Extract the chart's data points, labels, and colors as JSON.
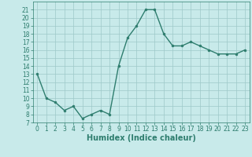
{
  "x": [
    0,
    1,
    2,
    3,
    4,
    5,
    6,
    7,
    8,
    9,
    10,
    11,
    12,
    13,
    14,
    15,
    16,
    17,
    18,
    19,
    20,
    21,
    22,
    23
  ],
  "y": [
    13,
    10,
    9.5,
    8.5,
    9,
    7.5,
    8,
    8.5,
    8,
    14,
    17.5,
    19,
    21,
    21,
    18,
    16.5,
    16.5,
    17,
    16.5,
    16,
    15.5,
    15.5,
    15.5,
    16
  ],
  "line_color": "#2e7d6e",
  "marker": "o",
  "marker_size": 2.0,
  "bg_color": "#c8eaea",
  "grid_color": "#9ec8c8",
  "xlabel": "Humidex (Indice chaleur)",
  "xlim": [
    -0.5,
    23.5
  ],
  "ylim": [
    7,
    22
  ],
  "xticks": [
    0,
    1,
    2,
    3,
    4,
    5,
    6,
    7,
    8,
    9,
    10,
    11,
    12,
    13,
    14,
    15,
    16,
    17,
    18,
    19,
    20,
    21,
    22,
    23
  ],
  "yticks": [
    7,
    8,
    9,
    10,
    11,
    12,
    13,
    14,
    15,
    16,
    17,
    18,
    19,
    20,
    21
  ],
  "xlabel_fontsize": 7,
  "tick_fontsize": 5.5,
  "line_width": 1.0
}
